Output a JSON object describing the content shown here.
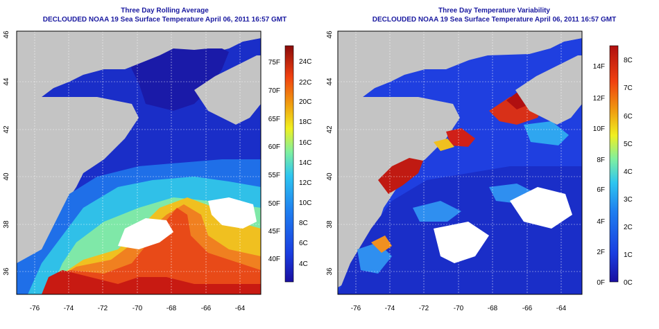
{
  "panels": [
    {
      "title": "Three Day Rolling Average",
      "subtitle": "DECLOUDED NOAA 19 Sea Surface Temperature April 06, 2011 16:57 GMT",
      "x_ticks": [
        "-76",
        "-74",
        "-72",
        "-70",
        "-68",
        "-66",
        "-64"
      ],
      "y_ticks": [
        "36",
        "38",
        "40",
        "42",
        "44",
        "46"
      ],
      "colorbar": {
        "left_labels": [
          "75F",
          "70F",
          "65F",
          "60F",
          "55F",
          "50F",
          "45F",
          "40F"
        ],
        "right_labels": [
          "24C",
          "22C",
          "20C",
          "18C",
          "16C",
          "14C",
          "12C",
          "10C",
          "8C",
          "6C",
          "4C"
        ]
      }
    },
    {
      "title": "Three Day Temperature Variability",
      "subtitle": "DECLOUDED NOAA 19 Sea Surface Temperature April 06, 2011 16:57 GMT",
      "x_ticks": [
        "-76",
        "-74",
        "-72",
        "-70",
        "-68",
        "-66",
        "-64"
      ],
      "y_ticks": [
        "36",
        "38",
        "40",
        "42",
        "44",
        "46"
      ],
      "colorbar": {
        "left_labels": [
          "14F",
          "12F",
          "10F",
          "8F",
          "6F",
          "4F",
          "2F",
          "0F"
        ],
        "right_labels": [
          "8C",
          "7C",
          "6C",
          "5C",
          "4C",
          "3C",
          "2C",
          "1C",
          "0C"
        ]
      }
    }
  ],
  "colors": {
    "land": "#c4c4c4",
    "title": "#1a1aa0",
    "scale": [
      "#1a0fa0",
      "#1a3de0",
      "#1f7ff0",
      "#2ec6f0",
      "#7ff0a0",
      "#f0f020",
      "#f0a010",
      "#f04010",
      "#c01010",
      "#8a0a0a"
    ]
  }
}
